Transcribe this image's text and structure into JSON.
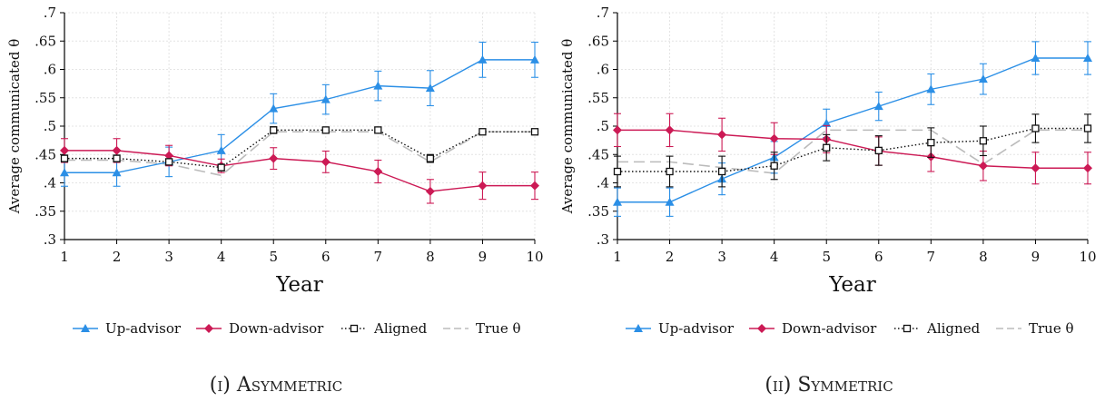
{
  "chart_data": [
    {
      "type": "line",
      "caption": "(i) Asymmetric",
      "xlabel": "Year",
      "ylabel": "Average communicated θ",
      "x": [
        1,
        2,
        3,
        4,
        5,
        6,
        7,
        8,
        9,
        10
      ],
      "xlim": [
        1,
        10
      ],
      "ylim": [
        0.3,
        0.7
      ],
      "yticks": [
        0.3,
        0.35,
        0.4,
        0.45,
        0.5,
        0.55,
        0.6,
        0.65,
        0.7
      ],
      "ytick_labels": [
        ".3",
        ".35",
        ".4",
        ".45",
        ".5",
        ".55",
        ".6",
        ".65",
        ".7"
      ],
      "xtick_labels": [
        "1",
        "2",
        "3",
        "4",
        "5",
        "6",
        "7",
        "8",
        "9",
        "10"
      ],
      "grid": true,
      "legend_position": "bottom",
      "series": [
        {
          "name": "Up-advisor",
          "color": "#2b8fe6",
          "marker": "triangle",
          "dash": "solid",
          "values": [
            0.418,
            0.418,
            0.437,
            0.457,
            0.531,
            0.547,
            0.571,
            0.567,
            0.617,
            0.617
          ],
          "err": [
            0.024,
            0.024,
            0.026,
            0.028,
            0.026,
            0.026,
            0.026,
            0.031,
            0.031,
            0.031
          ]
        },
        {
          "name": "Down-advisor",
          "color": "#cc1a55",
          "marker": "diamond",
          "dash": "solid",
          "values": [
            0.457,
            0.457,
            0.448,
            0.43,
            0.443,
            0.437,
            0.42,
            0.385,
            0.395,
            0.395
          ],
          "err": [
            0.021,
            0.021,
            0.018,
            0.012,
            0.019,
            0.019,
            0.02,
            0.021,
            0.024,
            0.024
          ]
        },
        {
          "name": "Aligned",
          "color": "#111111",
          "marker": "square",
          "dash": "dot",
          "values": [
            0.443,
            0.443,
            0.437,
            0.427,
            0.493,
            0.493,
            0.493,
            0.443,
            0.49,
            0.49
          ],
          "err": [
            0.006,
            0.006,
            0.004,
            0.006,
            0.006,
            0.005,
            0.005,
            0.007,
            0.004,
            0.004
          ]
        },
        {
          "name": "True θ",
          "color": "#bbbbbb",
          "marker": "none",
          "dash": "long",
          "values": [
            0.44,
            0.44,
            0.433,
            0.413,
            0.49,
            0.49,
            0.49,
            0.437,
            0.49,
            0.49
          ],
          "err": null
        }
      ]
    },
    {
      "type": "line",
      "caption": "(ii) Symmetric",
      "xlabel": "Year",
      "ylabel": "Average communicated θ",
      "x": [
        1,
        2,
        3,
        4,
        5,
        6,
        7,
        8,
        9,
        10
      ],
      "xlim": [
        1,
        10
      ],
      "ylim": [
        0.3,
        0.7
      ],
      "yticks": [
        0.3,
        0.35,
        0.4,
        0.45,
        0.5,
        0.55,
        0.6,
        0.65,
        0.7
      ],
      "ytick_labels": [
        ".3",
        ".35",
        ".4",
        ".45",
        ".5",
        ".55",
        ".6",
        ".65",
        ".7"
      ],
      "xtick_labels": [
        "1",
        "2",
        "3",
        "4",
        "5",
        "6",
        "7",
        "8",
        "9",
        "10"
      ],
      "grid": true,
      "legend_position": "bottom",
      "series": [
        {
          "name": "Up-advisor",
          "color": "#2b8fe6",
          "marker": "triangle",
          "dash": "solid",
          "values": [
            0.366,
            0.366,
            0.407,
            0.445,
            0.505,
            0.535,
            0.565,
            0.583,
            0.62,
            0.62
          ],
          "err": [
            0.025,
            0.025,
            0.028,
            0.028,
            0.025,
            0.025,
            0.027,
            0.027,
            0.029,
            0.029
          ]
        },
        {
          "name": "Down-advisor",
          "color": "#cc1a55",
          "marker": "diamond",
          "dash": "solid",
          "values": [
            0.493,
            0.493,
            0.485,
            0.478,
            0.477,
            0.456,
            0.446,
            0.43,
            0.426,
            0.426
          ],
          "err": [
            0.029,
            0.029,
            0.029,
            0.028,
            0.024,
            0.025,
            0.026,
            0.026,
            0.028,
            0.028
          ]
        },
        {
          "name": "Aligned",
          "color": "#111111",
          "marker": "square",
          "dash": "dot",
          "values": [
            0.42,
            0.42,
            0.42,
            0.43,
            0.462,
            0.457,
            0.471,
            0.474,
            0.496,
            0.496
          ],
          "err": [
            0.027,
            0.027,
            0.027,
            0.024,
            0.023,
            0.026,
            0.026,
            0.026,
            0.025,
            0.025
          ]
        },
        {
          "name": "True θ",
          "color": "#bbbbbb",
          "marker": "none",
          "dash": "long",
          "values": [
            0.437,
            0.437,
            0.427,
            0.417,
            0.493,
            0.493,
            0.493,
            0.433,
            0.493,
            0.493
          ],
          "err": null
        }
      ]
    }
  ]
}
